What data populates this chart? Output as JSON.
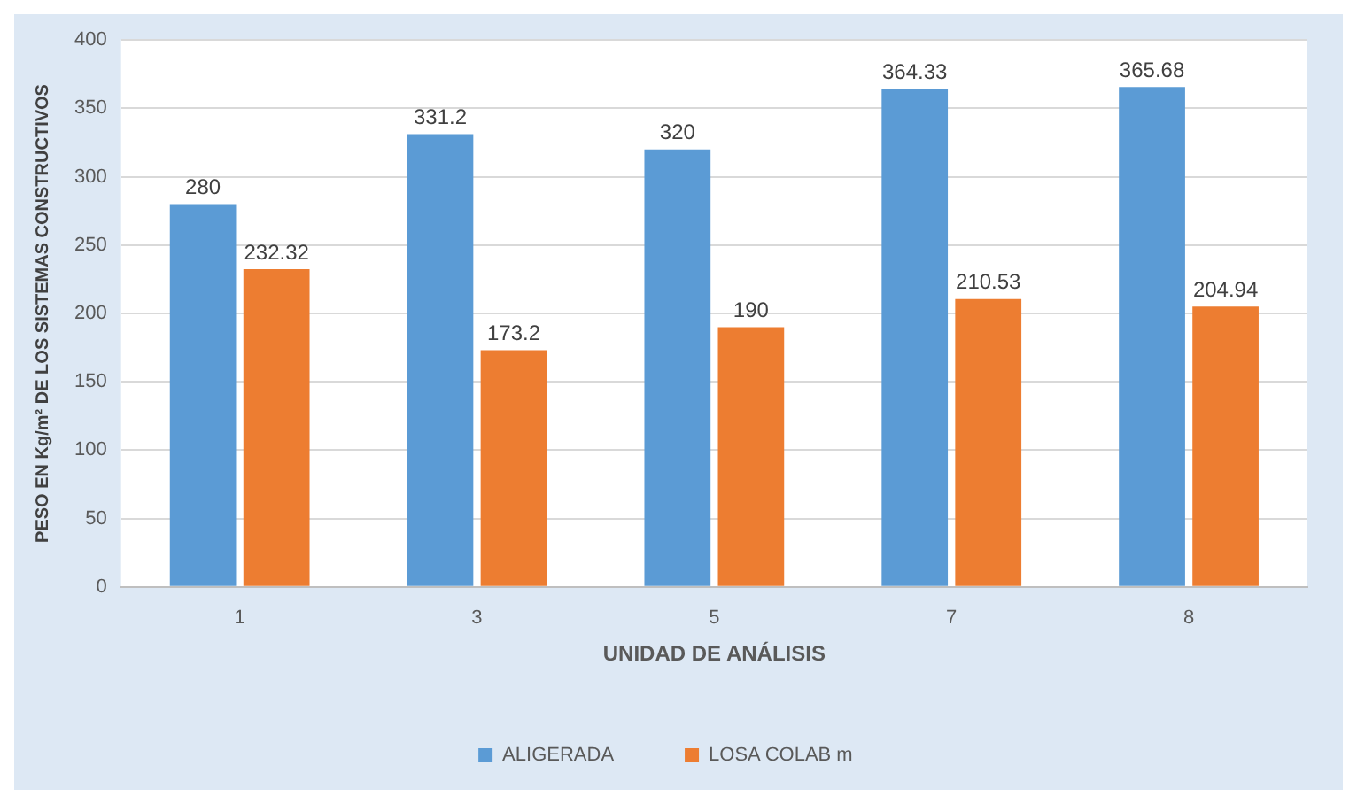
{
  "chart_data": {
    "type": "bar",
    "xlabel": "UNIDAD DE ANÁLISIS",
    "ylabel": "PESO EN Kg/m² DE LOS SISTEMAS CONSTRUCTIVOS",
    "categories": [
      "1",
      "3",
      "5",
      "7",
      "8"
    ],
    "series": [
      {
        "name": "ALIGERADA",
        "color": "#5b9bd5",
        "values": [
          280,
          331.2,
          320,
          364.33,
          365.68
        ]
      },
      {
        "name": "LOSA COLAB m",
        "color": "#ed7d31",
        "values": [
          232.32,
          173.2,
          190,
          210.53,
          204.94
        ]
      }
    ],
    "ylim": [
      0,
      400
    ],
    "yticks": [
      0,
      50,
      100,
      150,
      200,
      250,
      300,
      350,
      400
    ],
    "grid": "y",
    "legend": "bottom",
    "data_labels": true
  }
}
